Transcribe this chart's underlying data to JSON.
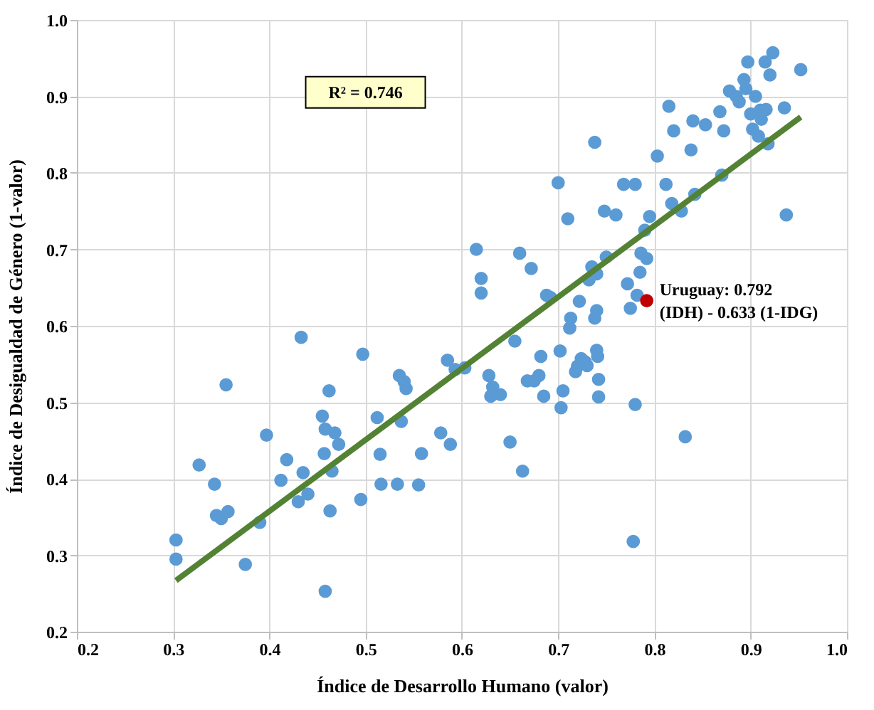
{
  "chart_data": {
    "type": "scatter",
    "xlabel": "Índice de Desarrollo Humano  (valor)",
    "ylabel": "Índice de Desigualdad de Género (1-valor)",
    "xlim": [
      0.2,
      1.0
    ],
    "ylim": [
      0.2,
      1.0
    ],
    "xticks": [
      0.2,
      0.3,
      0.4,
      0.5,
      0.6,
      0.7,
      0.8,
      0.9,
      {
        "value": 1.0,
        "label": "1.0"
      }
    ],
    "yticks": [
      0.2,
      0.3,
      0.4,
      0.5,
      0.6,
      0.7,
      0.8,
      0.9,
      {
        "value": 1.0,
        "label": "1.0"
      }
    ],
    "grid": true,
    "marker": "circle",
    "annotations": [
      "R² = 0.746",
      {
        "text": "Uruguay: 0.792\n(IDH) - 0.633 (1-IDG)",
        "x": 0.792,
        "y": 0.633
      }
    ],
    "series": [
      {
        "color": "#5b9bd5",
        "x": [
          0.303,
          0.303,
          0.327,
          0.343,
          0.345,
          0.35,
          0.355,
          0.357,
          0.375,
          0.39,
          0.397,
          0.412,
          0.418,
          0.43,
          0.433,
          0.435,
          0.44,
          0.455,
          0.457,
          0.458,
          0.458,
          0.462,
          0.463,
          0.465,
          0.468,
          0.472,
          0.495,
          0.497,
          0.512,
          0.515,
          0.516,
          0.533,
          0.535,
          0.537,
          0.54,
          0.542,
          0.555,
          0.558,
          0.578,
          0.585,
          0.588,
          0.593,
          0.603,
          0.615,
          0.62,
          0.62,
          0.628,
          0.63,
          0.632,
          0.64,
          0.65,
          0.655,
          0.66,
          0.663,
          0.668,
          0.672,
          0.675,
          0.68,
          0.682,
          0.685,
          0.688,
          0.692,
          0.7,
          0.702,
          0.703,
          0.705,
          0.71,
          0.712,
          0.713,
          0.718,
          0.72,
          0.722,
          0.724,
          0.728,
          0.73,
          0.732,
          0.735,
          0.738,
          0.738,
          0.74,
          0.74,
          0.74,
          0.741,
          0.742,
          0.742,
          0.748,
          0.75,
          0.76,
          0.768,
          0.772,
          0.775,
          0.778,
          0.78,
          0.78,
          0.782,
          0.785,
          0.786,
          0.79,
          0.792,
          0.795,
          0.803,
          0.812,
          0.815,
          0.818,
          0.82,
          0.828,
          0.832,
          0.838,
          0.84,
          0.842,
          0.853,
          0.868,
          0.87,
          0.872,
          0.878,
          0.885,
          0.888,
          0.893,
          0.895,
          0.897,
          0.9,
          0.902,
          0.905,
          0.908,
          0.91,
          0.911,
          0.915,
          0.916,
          0.918,
          0.92,
          0.923,
          0.935,
          0.937,
          0.952
        ],
        "values": [
          0.32,
          0.295,
          0.418,
          0.393,
          0.352,
          0.348,
          0.523,
          0.357,
          0.288,
          0.343,
          0.457,
          0.398,
          0.425,
          0.37,
          0.585,
          0.408,
          0.38,
          0.482,
          0.433,
          0.465,
          0.253,
          0.515,
          0.358,
          0.41,
          0.46,
          0.445,
          0.373,
          0.563,
          0.48,
          0.432,
          0.393,
          0.393,
          0.535,
          0.475,
          0.527,
          0.518,
          0.392,
          0.433,
          0.46,
          0.555,
          0.445,
          0.543,
          0.545,
          0.7,
          0.662,
          0.643,
          0.535,
          0.508,
          0.52,
          0.51,
          0.448,
          0.58,
          0.695,
          0.41,
          0.528,
          0.675,
          0.528,
          0.535,
          0.56,
          0.508,
          0.64,
          0.637,
          0.787,
          0.567,
          0.493,
          0.515,
          0.74,
          0.597,
          0.61,
          0.54,
          0.547,
          0.632,
          0.557,
          0.553,
          0.548,
          0.66,
          0.677,
          0.84,
          0.61,
          0.62,
          0.668,
          0.568,
          0.56,
          0.507,
          0.53,
          0.75,
          0.69,
          0.745,
          0.785,
          0.655,
          0.623,
          0.318,
          0.497,
          0.785,
          0.64,
          0.67,
          0.695,
          0.725,
          0.688,
          0.743,
          0.822,
          0.785,
          0.887,
          0.76,
          0.855,
          0.75,
          0.455,
          0.83,
          0.868,
          0.772,
          0.863,
          0.88,
          0.797,
          0.855,
          0.907,
          0.9,
          0.893,
          0.922,
          0.91,
          0.945,
          0.877,
          0.857,
          0.9,
          0.848,
          0.882,
          0.87,
          0.945,
          0.883,
          0.838,
          0.928,
          0.957,
          0.885,
          0.745,
          0.935
        ]
      },
      {
        "color": "#c00000",
        "x": [
          0.792
        ],
        "values": [
          0.633
        ]
      },
      {
        "type": "line",
        "color": "#548235",
        "line_style": "solid",
        "marker": "none",
        "x": [
          0.303,
          0.952
        ],
        "values": [
          0.267,
          0.873
        ]
      }
    ]
  }
}
